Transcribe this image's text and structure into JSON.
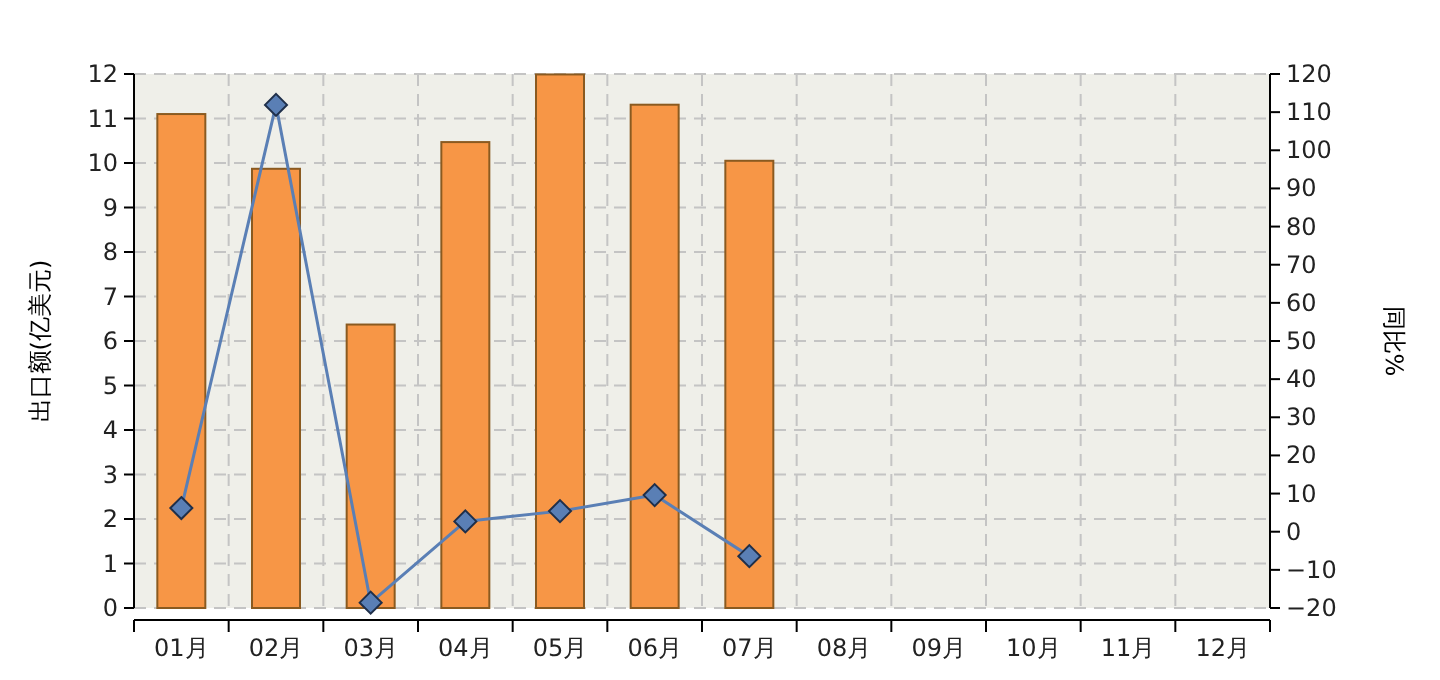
{
  "chart_data": {
    "type": "bar",
    "ylabel": "出口额(亿美元)",
    "y2label": "同比%",
    "categories": [
      "01月",
      "02月",
      "03月",
      "04月",
      "05月",
      "06月",
      "07月",
      "08月",
      "09月",
      "10月",
      "11月",
      "12月"
    ],
    "series": [
      {
        "type": "bar",
        "color": "#f79646",
        "values": [
          11.1,
          9.87,
          6.37,
          10.47,
          11.99,
          11.31,
          10.05,
          null,
          null,
          null,
          null,
          null
        ]
      },
      {
        "type": "line",
        "axis": "y2",
        "color": "#5a7fb5",
        "marker": "diamond",
        "values": [
          6.2,
          111.9,
          -18.6,
          2.7,
          5.4,
          9.6,
          -6.4,
          null,
          null,
          null,
          null,
          null
        ]
      }
    ],
    "ylim": [
      0,
      12
    ],
    "yticks": [
      0,
      1,
      2,
      3,
      4,
      5,
      6,
      7,
      8,
      9,
      10,
      11,
      12
    ],
    "y2lim": [
      -20,
      120
    ],
    "y2ticks": [
      -20,
      -10,
      0,
      10,
      20,
      30,
      40,
      50,
      60,
      70,
      80,
      90,
      100,
      110,
      120
    ],
    "grid": true
  }
}
